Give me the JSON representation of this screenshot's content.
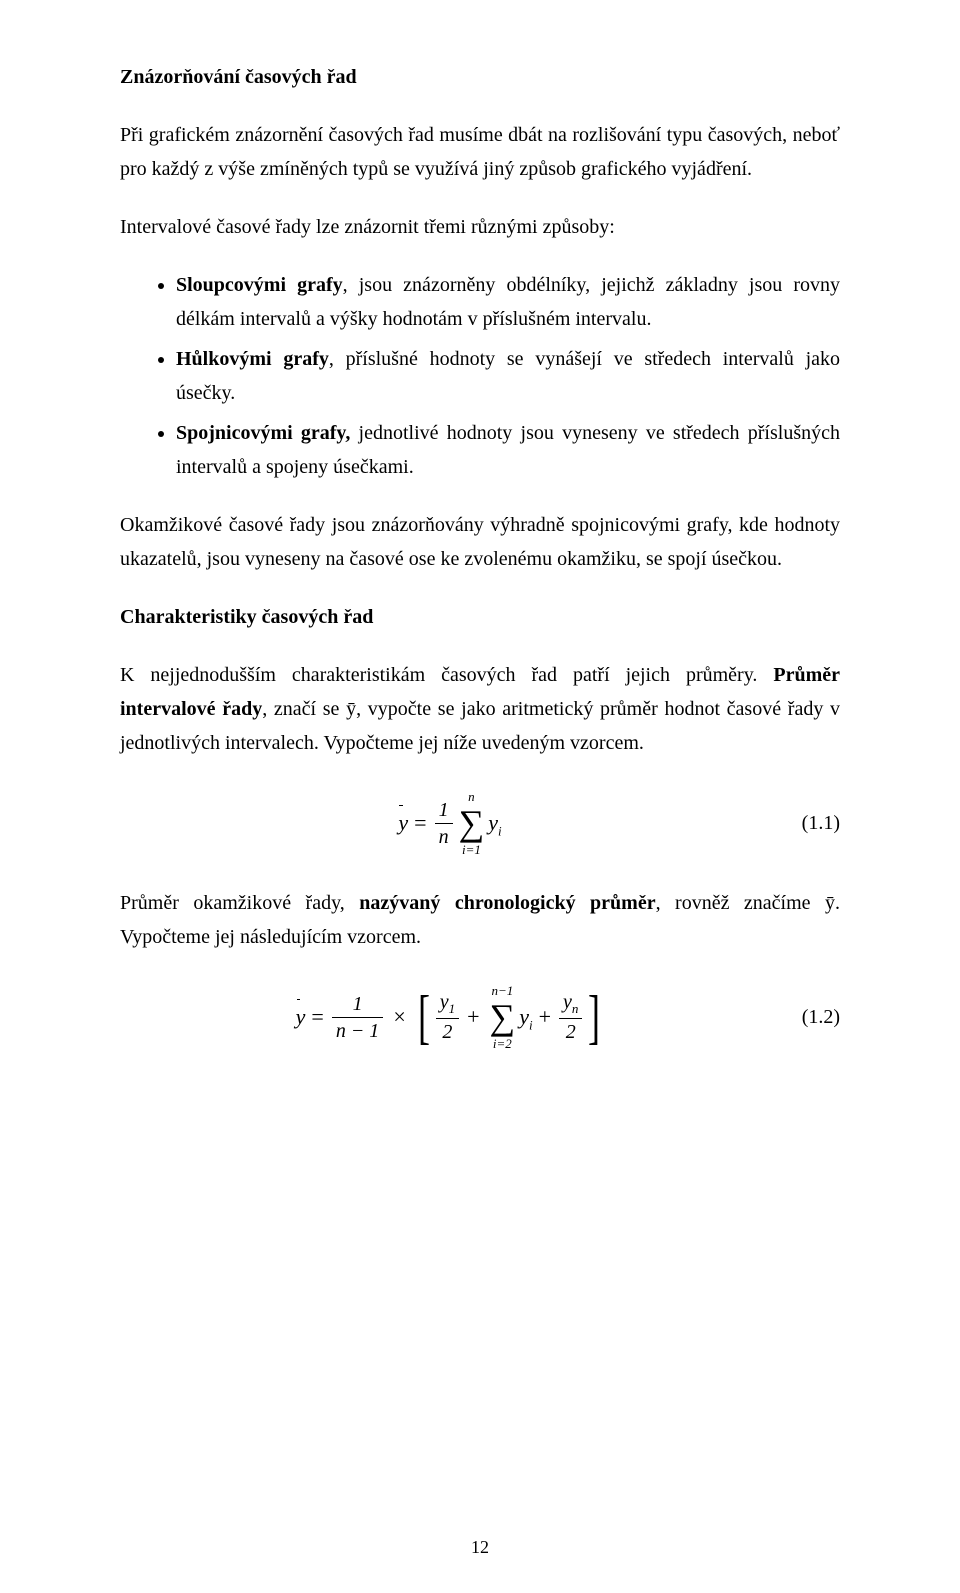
{
  "heading1": "Znázorňování časových řad",
  "para1": "Při grafickém znázornění časových řad musíme dbát na rozlišování typu časových, neboť pro každý z výše zmíněných typů se využívá jiný způsob grafického vyjádření.",
  "para2": "Intervalové časové řady lze znázornit třemi různými způsoby:",
  "bullet1_bold": "Sloupcovými grafy",
  "bullet1_rest": ", jsou znázorněny obdélníky, jejichž základny jsou rovny délkám intervalů a výšky hodnotám v příslušném intervalu.",
  "bullet2_bold": "Hůlkovými grafy",
  "bullet2_rest": ", příslušné hodnoty se vynášejí ve středech intervalů jako úsečky.",
  "bullet3_bold": "Spojnicovými grafy, ",
  "bullet3_rest": "jednotlivé hodnoty jsou vyneseny ve středech příslušných intervalů a spojeny úsečkami.",
  "para3": "Okamžikové časové řady jsou znázorňovány výhradně spojnicovými grafy, kde hodnoty ukazatelů, jsou vyneseny na časové ose ke zvolenému okamžiku, se spojí úsečkou.",
  "heading2": "Charakteristiky časových řad",
  "para4a": "K nejjednodušším charakteristikám časových řad patří jejich průměry. ",
  "para4b_bold": "Průměr intervalové řady",
  "para4c": ", značí se ȳ, vypočte se jako aritmetický průměr hodnot časové řady v jednotlivých intervalech. Vypočteme jej níže uvedeným vzorcem.",
  "eq1_num": "(1.1)",
  "eq1": {
    "lhs": "ȳ",
    "frac_num": "1",
    "frac_den": "n",
    "sum_top": "n",
    "sum_bot": "i=1",
    "term": "y",
    "term_sub": "i"
  },
  "para5a": "Průměr okamžikové řady, ",
  "para5b_bold": "nazývaný chronologický průměr",
  "para5c": ", rovněž značíme ȳ. Vypočteme jej následujícím vzorcem.",
  "eq2_num": "(1.2)",
  "eq2": {
    "lhs": "ȳ",
    "leadfrac_num": "1",
    "leadfrac_den": "n − 1",
    "t1_num": "y",
    "t1_num_sub": "1",
    "t1_den": "2",
    "sum_top": "n−1",
    "sum_bot": "i=2",
    "sum_term": "y",
    "sum_term_sub": "i",
    "t3_num": "y",
    "t3_num_sub": "n",
    "t3_den": "2"
  },
  "page_number": "12"
}
